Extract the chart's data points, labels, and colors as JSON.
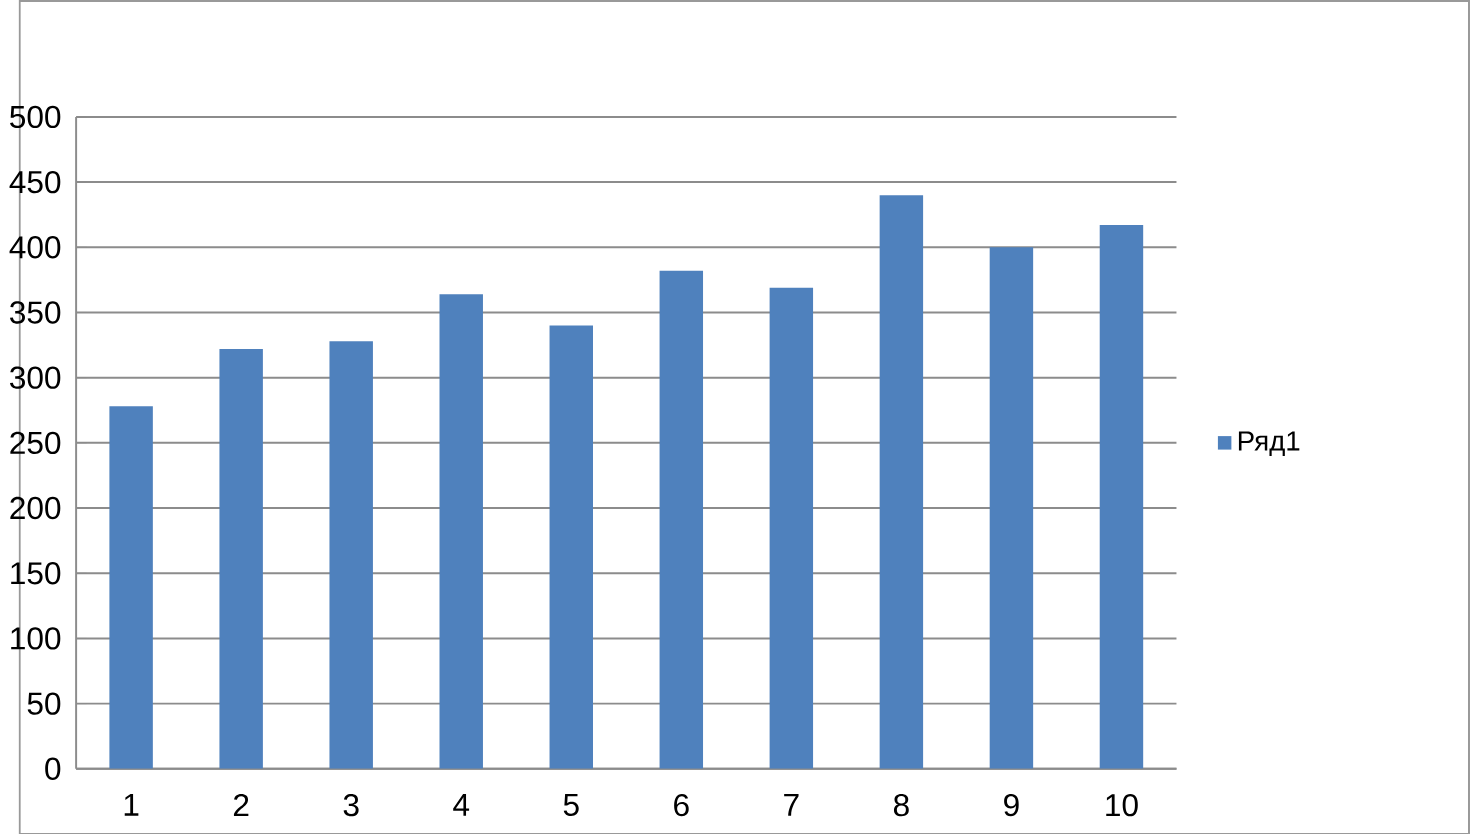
{
  "chart_data": {
    "type": "bar",
    "categories": [
      "1",
      "2",
      "3",
      "4",
      "5",
      "6",
      "7",
      "8",
      "9",
      "10"
    ],
    "series": [
      {
        "name": "Ряд1",
        "color": "#4f81bd",
        "values": [
          278,
          322,
          328,
          364,
          340,
          382,
          369,
          440,
          400,
          417
        ]
      }
    ],
    "ylim": [
      0,
      500
    ],
    "yticks": [
      0,
      50,
      100,
      150,
      200,
      250,
      300,
      350,
      400,
      450,
      500
    ],
    "grid": "y",
    "legend": "right"
  }
}
